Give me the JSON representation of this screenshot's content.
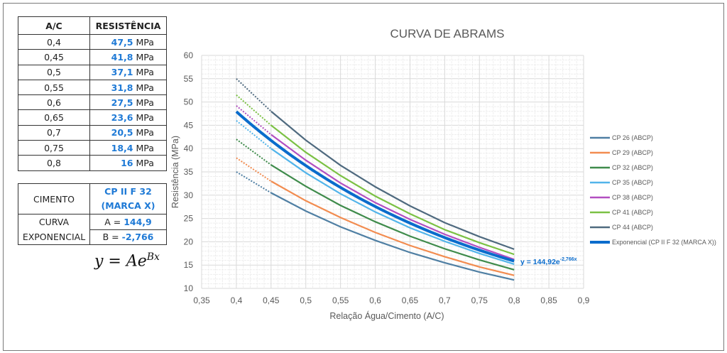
{
  "table": {
    "headers": [
      "A/C",
      "RESISTÊNCIA"
    ],
    "unit": "MPa",
    "rows": [
      {
        "ac": "0,4",
        "res": "47,5"
      },
      {
        "ac": "0,45",
        "res": "41,8"
      },
      {
        "ac": "0,5",
        "res": "37,1"
      },
      {
        "ac": "0,55",
        "res": "31,8"
      },
      {
        "ac": "0,6",
        "res": "27,5"
      },
      {
        "ac": "0,65",
        "res": "23,6"
      },
      {
        "ac": "0,7",
        "res": "20,5"
      },
      {
        "ac": "0,75",
        "res": "18,4"
      },
      {
        "ac": "0,8",
        "res": "16"
      }
    ]
  },
  "cement": {
    "label": "CIMENTO",
    "value": "CP II F 32 (MARCA X)",
    "curve_label": "CURVA EXPONENCIAL",
    "a_label": "A =",
    "a_value": "144,9",
    "b_label": "B =",
    "b_value": "-2,766"
  },
  "formula": {
    "base": "y = Ae",
    "exp": "Bx"
  },
  "chart_data": {
    "type": "line",
    "title": "CURVA DE ABRAMS",
    "xlabel": "Relação Água/Cimento (A/C)",
    "ylabel": "Resistência (MPa)",
    "xlim": [
      0.35,
      0.9
    ],
    "ylim": [
      10,
      60
    ],
    "x_ticks": [
      "0,35",
      "0,4",
      "0,45",
      "0,5",
      "0,55",
      "0,6",
      "0,65",
      "0,7",
      "0,75",
      "0,8",
      "0,85",
      "0,9"
    ],
    "y_ticks": [
      "10",
      "15",
      "20",
      "25",
      "30",
      "35",
      "40",
      "45",
      "50",
      "55",
      "60"
    ],
    "grid": true,
    "legend": "right",
    "x": [
      0.4,
      0.45,
      0.5,
      0.55,
      0.6,
      0.65,
      0.7,
      0.75,
      0.8
    ],
    "dotted_until": 0.45,
    "series": [
      {
        "name": "CP 26 (ABCP)",
        "color": "#4f7fa3",
        "values": [
          35,
          30.5,
          26.6,
          23.2,
          20.3,
          17.7,
          15.5,
          13.5,
          11.8
        ]
      },
      {
        "name": "CP 29 (ABCP)",
        "color": "#f28c50",
        "values": [
          38,
          33,
          28.8,
          25.2,
          22.0,
          19.2,
          16.8,
          14.6,
          12.8
        ]
      },
      {
        "name": "CP 32 (ABCP)",
        "color": "#3f8b4b",
        "values": [
          42,
          36.5,
          31.9,
          27.8,
          24.3,
          21.2,
          18.5,
          16.1,
          14.0
        ]
      },
      {
        "name": "CP 35 (ABCP)",
        "color": "#52b4ea",
        "values": [
          46,
          40,
          34.8,
          30.3,
          26.4,
          23.0,
          20.1,
          17.5,
          15.2
        ]
      },
      {
        "name": "CP 38 (ABCP)",
        "color": "#b24fc1",
        "values": [
          49.2,
          43,
          37.5,
          32.6,
          28.4,
          24.8,
          21.6,
          18.8,
          16.2
        ]
      },
      {
        "name": "CP 41 (ABCP)",
        "color": "#7bc144",
        "values": [
          51.5,
          45,
          39.2,
          34.2,
          29.8,
          26.0,
          22.6,
          19.8,
          17.3
        ]
      },
      {
        "name": "CP 44 (ABCP)",
        "color": "#4f6a7f",
        "values": [
          55,
          48,
          41.8,
          36.4,
          31.8,
          27.7,
          24.1,
          21.1,
          18.4
        ]
      }
    ],
    "trendline": {
      "name": "Exponencial (CP II F 32 (MARCA X))",
      "color": "#0a6ccc",
      "A": 144.92,
      "B": -2.766,
      "x_range": [
        0.4,
        0.8
      ],
      "equation_base": "y = 144,92e",
      "equation_exp": "-2,766x"
    }
  }
}
